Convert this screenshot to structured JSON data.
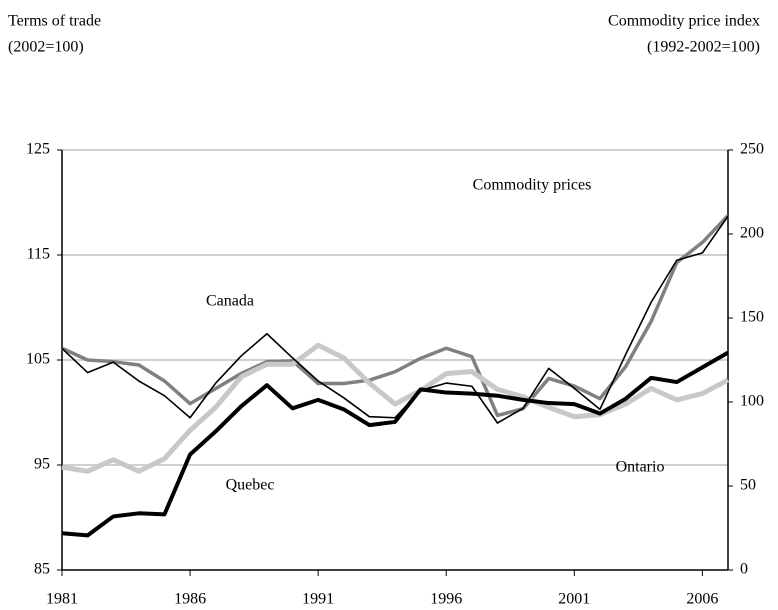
{
  "chart_data": {
    "type": "line",
    "left_axis_title": [
      "Terms of trade",
      "(2002=100)"
    ],
    "right_axis_title": [
      "Commodity price index",
      "(1992-2002=100)"
    ],
    "x": [
      1981,
      1982,
      1983,
      1984,
      1985,
      1986,
      1987,
      1988,
      1989,
      1990,
      1991,
      1992,
      1993,
      1994,
      1995,
      1996,
      1997,
      1998,
      1999,
      2000,
      2001,
      2002,
      2003,
      2004,
      2005,
      2006,
      2007
    ],
    "xlim": [
      1981,
      2007
    ],
    "xticks": [
      1981,
      1986,
      1991,
      1996,
      2001,
      2006
    ],
    "ylim": [
      85,
      125
    ],
    "yticks": [
      85,
      95,
      105,
      115,
      125
    ],
    "y2lim": [
      0,
      250
    ],
    "y2ticks": [
      0,
      50,
      100,
      150,
      200,
      250
    ],
    "grid": true,
    "series": [
      {
        "name": "Canada",
        "color": "#000000",
        "width": 1.6,
        "values": [
          106.1,
          103.8,
          104.8,
          103.0,
          101.6,
          99.5,
          102.8,
          105.4,
          107.5,
          105.2,
          103.0,
          101.4,
          99.6,
          99.5,
          102.1,
          102.8,
          102.5,
          99.0,
          100.4,
          104.2,
          102.3,
          100.3,
          105.5,
          110.5,
          114.5,
          115.2,
          118.7
        ]
      },
      {
        "name": "Ontario",
        "color": "#c8c8c8",
        "width": 5,
        "values": [
          94.8,
          94.4,
          95.5,
          94.4,
          95.6,
          98.3,
          100.5,
          103.4,
          104.6,
          104.6,
          106.4,
          105.2,
          102.8,
          100.8,
          102.1,
          103.7,
          103.9,
          102.2,
          101.5,
          100.5,
          99.6,
          99.8,
          100.8,
          102.3,
          101.2,
          101.8,
          103.1
        ]
      },
      {
        "name": "Quebec",
        "color": "#000000",
        "width": 4,
        "values": [
          88.5,
          88.3,
          90.1,
          90.4,
          90.3,
          96.0,
          98.2,
          100.6,
          102.6,
          100.4,
          101.2,
          100.3,
          98.8,
          99.1,
          102.2,
          101.9,
          101.8,
          101.6,
          101.2,
          100.9,
          100.8,
          99.9,
          101.3,
          103.3,
          102.9,
          104.3,
          105.7
        ]
      },
      {
        "name": "Commodity prices",
        "color": "#808080",
        "width": 3.5,
        "axis": "y2",
        "values": [
          132,
          125,
          124,
          122,
          112.5,
          99,
          108,
          117,
          124,
          124.5,
          111,
          111,
          113,
          118,
          126,
          132,
          127,
          92,
          96,
          114,
          109.5,
          102,
          121,
          148,
          183,
          195,
          211
        ]
      }
    ]
  }
}
